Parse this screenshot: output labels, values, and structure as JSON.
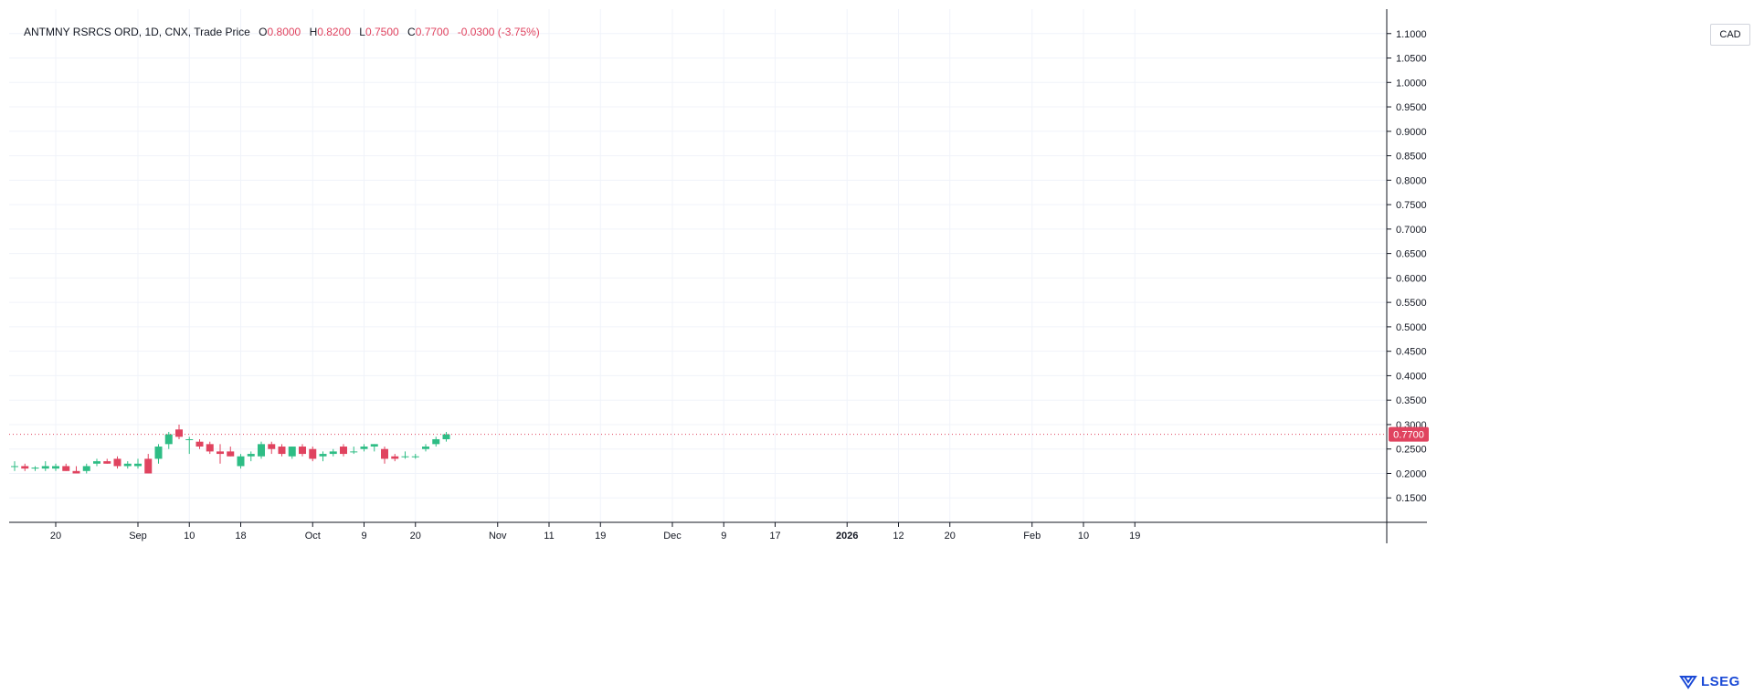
{
  "header": {
    "title": "ANTMNY RSRCS ORD, 1D, CNX, Trade Price",
    "open_key": "O",
    "open": "0.8000",
    "high_key": "H",
    "high": "0.8200",
    "low_key": "L",
    "low": "0.7500",
    "close_key": "C",
    "close": "0.7700",
    "change": "-0.0300 (-3.75%)"
  },
  "currency": "CAD",
  "logo": "LSEG",
  "colors": {
    "up": "#2ebd85",
    "down": "#e0435f",
    "grid": "#f0f3fa",
    "axis": "#131722"
  },
  "chart_data": {
    "type": "candlestick",
    "last_price_label": "0.7700",
    "y_ticks": [
      "1.1000",
      "1.0500",
      "1.0000",
      "0.9500",
      "0.9000",
      "0.8500",
      "0.8000",
      "0.7500",
      "0.7000",
      "0.6500",
      "0.6000",
      "0.5500",
      "0.5000",
      "0.4500",
      "0.4000",
      "0.3500",
      "0.3000",
      "0.2500",
      "0.2000",
      "0.1500"
    ],
    "ylim": [
      0.1,
      1.15
    ],
    "x_ticks": [
      {
        "i": 4,
        "label": "20"
      },
      {
        "i": 12,
        "label": "Sep"
      },
      {
        "i": 17,
        "label": "10"
      },
      {
        "i": 22,
        "label": "18"
      },
      {
        "i": 29,
        "label": "Oct"
      },
      {
        "i": 34,
        "label": "9"
      },
      {
        "i": 39,
        "label": "20"
      },
      {
        "i": 47,
        "label": "Nov"
      },
      {
        "i": 52,
        "label": "11"
      },
      {
        "i": 57,
        "label": "19"
      },
      {
        "i": 64,
        "label": "Dec"
      },
      {
        "i": 69,
        "label": "9"
      },
      {
        "i": 74,
        "label": "17"
      },
      {
        "i": 81,
        "label": "2026"
      },
      {
        "i": 86,
        "label": "12"
      },
      {
        "i": 91,
        "label": "20"
      },
      {
        "i": 99,
        "label": "Feb"
      },
      {
        "i": 104,
        "label": "10"
      },
      {
        "i": 109,
        "label": "19"
      }
    ],
    "candles": [
      {
        "o": 0.215,
        "h": 0.225,
        "l": 0.205,
        "c": 0.215
      },
      {
        "o": 0.215,
        "h": 0.22,
        "l": 0.205,
        "c": 0.21
      },
      {
        "o": 0.21,
        "h": 0.215,
        "l": 0.205,
        "c": 0.212
      },
      {
        "o": 0.21,
        "h": 0.225,
        "l": 0.205,
        "c": 0.215
      },
      {
        "o": 0.21,
        "h": 0.22,
        "l": 0.205,
        "c": 0.215
      },
      {
        "o": 0.215,
        "h": 0.22,
        "l": 0.205,
        "c": 0.205
      },
      {
        "o": 0.205,
        "h": 0.215,
        "l": 0.2,
        "c": 0.2
      },
      {
        "o": 0.205,
        "h": 0.22,
        "l": 0.2,
        "c": 0.215
      },
      {
        "o": 0.22,
        "h": 0.23,
        "l": 0.215,
        "c": 0.225
      },
      {
        "o": 0.225,
        "h": 0.23,
        "l": 0.22,
        "c": 0.22
      },
      {
        "o": 0.23,
        "h": 0.235,
        "l": 0.21,
        "c": 0.215
      },
      {
        "o": 0.215,
        "h": 0.225,
        "l": 0.21,
        "c": 0.22
      },
      {
        "o": 0.215,
        "h": 0.23,
        "l": 0.21,
        "c": 0.22
      },
      {
        "o": 0.23,
        "h": 0.24,
        "l": 0.2,
        "c": 0.2
      },
      {
        "o": 0.23,
        "h": 0.26,
        "l": 0.22,
        "c": 0.255
      },
      {
        "o": 0.26,
        "h": 0.285,
        "l": 0.25,
        "c": 0.28
      },
      {
        "o": 0.29,
        "h": 0.3,
        "l": 0.27,
        "c": 0.275
      },
      {
        "o": 0.27,
        "h": 0.275,
        "l": 0.24,
        "c": 0.27
      },
      {
        "o": 0.265,
        "h": 0.27,
        "l": 0.25,
        "c": 0.255
      },
      {
        "o": 0.26,
        "h": 0.265,
        "l": 0.24,
        "c": 0.245
      },
      {
        "o": 0.245,
        "h": 0.26,
        "l": 0.22,
        "c": 0.24
      },
      {
        "o": 0.245,
        "h": 0.255,
        "l": 0.235,
        "c": 0.235
      },
      {
        "o": 0.215,
        "h": 0.24,
        "l": 0.21,
        "c": 0.235
      },
      {
        "o": 0.235,
        "h": 0.245,
        "l": 0.225,
        "c": 0.24
      },
      {
        "o": 0.235,
        "h": 0.265,
        "l": 0.23,
        "c": 0.26
      },
      {
        "o": 0.26,
        "h": 0.265,
        "l": 0.24,
        "c": 0.25
      },
      {
        "o": 0.255,
        "h": 0.26,
        "l": 0.235,
        "c": 0.24
      },
      {
        "o": 0.235,
        "h": 0.255,
        "l": 0.23,
        "c": 0.255
      },
      {
        "o": 0.255,
        "h": 0.26,
        "l": 0.235,
        "c": 0.24
      },
      {
        "o": 0.25,
        "h": 0.255,
        "l": 0.225,
        "c": 0.23
      },
      {
        "o": 0.235,
        "h": 0.245,
        "l": 0.225,
        "c": 0.24
      },
      {
        "o": 0.24,
        "h": 0.25,
        "l": 0.235,
        "c": 0.245
      },
      {
        "o": 0.255,
        "h": 0.26,
        "l": 0.235,
        "c": 0.24
      },
      {
        "o": 0.245,
        "h": 0.255,
        "l": 0.24,
        "c": 0.245
      },
      {
        "o": 0.25,
        "h": 0.26,
        "l": 0.245,
        "c": 0.255
      },
      {
        "o": 0.255,
        "h": 0.26,
        "l": 0.245,
        "c": 0.26
      },
      {
        "o": 0.25,
        "h": 0.255,
        "l": 0.22,
        "c": 0.23
      },
      {
        "o": 0.235,
        "h": 0.24,
        "l": 0.225,
        "c": 0.23
      },
      {
        "o": 0.235,
        "h": 0.245,
        "l": 0.23,
        "c": 0.235
      },
      {
        "o": 0.235,
        "h": 0.24,
        "l": 0.23,
        "c": 0.235
      },
      {
        "o": 0.25,
        "h": 0.26,
        "l": 0.245,
        "c": 0.255
      },
      {
        "o": 0.26,
        "h": 0.275,
        "l": 0.255,
        "c": 0.27
      },
      {
        "o": 0.27,
        "h": 0.285,
        "l": 0.265,
        "c": 0.28
      }
    ]
  }
}
